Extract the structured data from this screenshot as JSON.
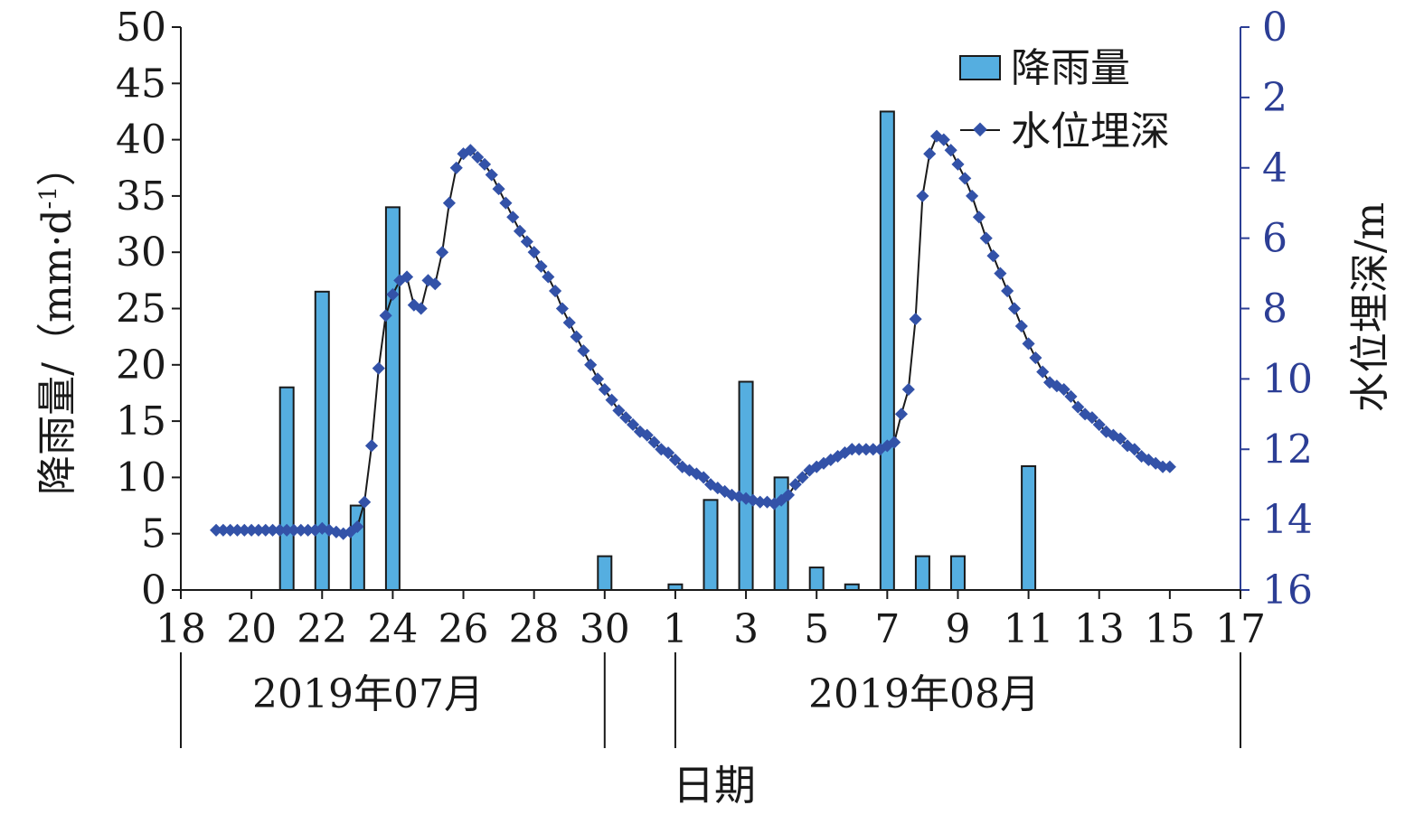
{
  "chart_data": {
    "type": "bar+line",
    "x_ticks": [
      "18",
      "20",
      "22",
      "24",
      "26",
      "28",
      "30",
      "1",
      "3",
      "5",
      "7",
      "9",
      "11",
      "13",
      "15",
      "17"
    ],
    "xlabel": "日期",
    "month_labels": [
      "2019年07月",
      "2019年08月"
    ],
    "ylabel_left": "降雨量/（mm·d",
    "ylabel_left_sup": "-1",
    "ylabel_left_suffix": "）",
    "ylabel_right": "水位埋深/m",
    "ylim_left": [
      0,
      50
    ],
    "ylim_right": [
      0,
      16
    ],
    "y_ticks_left": [
      "0",
      "5",
      "10",
      "15",
      "20",
      "25",
      "30",
      "35",
      "40",
      "45",
      "50"
    ],
    "y_ticks_right": [
      "0",
      "2",
      "4",
      "6",
      "8",
      "10",
      "12",
      "14",
      "16"
    ],
    "right_axis_inverted": true,
    "legend_position": "top-right",
    "colors": {
      "bar": "#55aee0",
      "line": "#1a1a1a",
      "marker": "#3352a8",
      "right_axis": "#2c3e95"
    },
    "series": [
      {
        "name": "降雨量",
        "type": "bar",
        "axis": "left",
        "points": [
          {
            "day": 21,
            "value": 18
          },
          {
            "day": 22,
            "value": 26.5
          },
          {
            "day": 23,
            "value": 7.5
          },
          {
            "day": 24,
            "value": 34
          },
          {
            "day": 30,
            "value": 3
          },
          {
            "day": 32,
            "value": 0.5
          },
          {
            "day": 33,
            "value": 8
          },
          {
            "day": 34,
            "value": 18.5
          },
          {
            "day": 35,
            "value": 10
          },
          {
            "day": 36,
            "value": 2
          },
          {
            "day": 37,
            "value": 0.5
          },
          {
            "day": 38,
            "value": 42.5
          },
          {
            "day": 39,
            "value": 3
          },
          {
            "day": 40,
            "value": 3
          },
          {
            "day": 42,
            "value": 11
          }
        ]
      },
      {
        "name": "水位埋深",
        "type": "line",
        "axis": "right",
        "points": [
          [
            19.0,
            14.3
          ],
          [
            19.2,
            14.3
          ],
          [
            19.4,
            14.3
          ],
          [
            19.6,
            14.3
          ],
          [
            19.8,
            14.3
          ],
          [
            20.0,
            14.3
          ],
          [
            20.2,
            14.3
          ],
          [
            20.4,
            14.3
          ],
          [
            20.6,
            14.3
          ],
          [
            20.8,
            14.3
          ],
          [
            21.0,
            14.3
          ],
          [
            21.2,
            14.3
          ],
          [
            21.4,
            14.3
          ],
          [
            21.6,
            14.3
          ],
          [
            21.8,
            14.3
          ],
          [
            22.0,
            14.25
          ],
          [
            22.2,
            14.3
          ],
          [
            22.4,
            14.35
          ],
          [
            22.6,
            14.4
          ],
          [
            22.8,
            14.35
          ],
          [
            23.0,
            14.2
          ],
          [
            23.2,
            13.5
          ],
          [
            23.4,
            11.9
          ],
          [
            23.6,
            9.7
          ],
          [
            23.8,
            8.2
          ],
          [
            24.0,
            7.6
          ],
          [
            24.2,
            7.2
          ],
          [
            24.4,
            7.1
          ],
          [
            24.6,
            7.9
          ],
          [
            24.8,
            8.0
          ],
          [
            25.0,
            7.2
          ],
          [
            25.2,
            7.3
          ],
          [
            25.4,
            6.4
          ],
          [
            25.6,
            5.0
          ],
          [
            25.8,
            4.0
          ],
          [
            26.0,
            3.6
          ],
          [
            26.2,
            3.5
          ],
          [
            26.4,
            3.7
          ],
          [
            26.6,
            3.9
          ],
          [
            26.8,
            4.2
          ],
          [
            27.0,
            4.6
          ],
          [
            27.2,
            5.0
          ],
          [
            27.4,
            5.4
          ],
          [
            27.6,
            5.8
          ],
          [
            27.8,
            6.1
          ],
          [
            28.0,
            6.4
          ],
          [
            28.2,
            6.8
          ],
          [
            28.4,
            7.1
          ],
          [
            28.6,
            7.5
          ],
          [
            28.8,
            8.0
          ],
          [
            29.0,
            8.4
          ],
          [
            29.2,
            8.8
          ],
          [
            29.4,
            9.2
          ],
          [
            29.6,
            9.6
          ],
          [
            29.8,
            10.0
          ],
          [
            30.0,
            10.3
          ],
          [
            30.2,
            10.6
          ],
          [
            30.4,
            10.9
          ],
          [
            30.6,
            11.1
          ],
          [
            30.8,
            11.3
          ],
          [
            31.0,
            11.5
          ],
          [
            31.2,
            11.6
          ],
          [
            31.4,
            11.8
          ],
          [
            31.6,
            12.0
          ],
          [
            31.8,
            12.1
          ],
          [
            32.0,
            12.3
          ],
          [
            32.2,
            12.5
          ],
          [
            32.4,
            12.6
          ],
          [
            32.6,
            12.7
          ],
          [
            32.8,
            12.8
          ],
          [
            33.0,
            13.0
          ],
          [
            33.2,
            13.1
          ],
          [
            33.4,
            13.2
          ],
          [
            33.6,
            13.3
          ],
          [
            33.8,
            13.35
          ],
          [
            34.0,
            13.4
          ],
          [
            34.2,
            13.45
          ],
          [
            34.4,
            13.5
          ],
          [
            34.6,
            13.5
          ],
          [
            34.8,
            13.55
          ],
          [
            35.0,
            13.45
          ],
          [
            35.2,
            13.3
          ],
          [
            35.4,
            13.0
          ],
          [
            35.6,
            12.8
          ],
          [
            35.8,
            12.6
          ],
          [
            36.0,
            12.5
          ],
          [
            36.2,
            12.4
          ],
          [
            36.4,
            12.3
          ],
          [
            36.6,
            12.2
          ],
          [
            36.8,
            12.1
          ],
          [
            37.0,
            12.0
          ],
          [
            37.2,
            12.0
          ],
          [
            37.4,
            12.0
          ],
          [
            37.6,
            12.0
          ],
          [
            37.8,
            12.0
          ],
          [
            38.0,
            11.9
          ],
          [
            38.2,
            11.8
          ],
          [
            38.4,
            11.0
          ],
          [
            38.6,
            10.3
          ],
          [
            38.8,
            8.3
          ],
          [
            39.0,
            4.8
          ],
          [
            39.2,
            3.6
          ],
          [
            39.4,
            3.1
          ],
          [
            39.6,
            3.2
          ],
          [
            39.8,
            3.5
          ],
          [
            40.0,
            3.9
          ],
          [
            40.2,
            4.3
          ],
          [
            40.4,
            4.8
          ],
          [
            40.6,
            5.4
          ],
          [
            40.8,
            6.0
          ],
          [
            41.0,
            6.5
          ],
          [
            41.2,
            7.0
          ],
          [
            41.4,
            7.5
          ],
          [
            41.6,
            8.0
          ],
          [
            41.8,
            8.5
          ],
          [
            42.0,
            9.0
          ],
          [
            42.2,
            9.4
          ],
          [
            42.4,
            9.8
          ],
          [
            42.6,
            10.1
          ],
          [
            42.8,
            10.2
          ],
          [
            43.0,
            10.3
          ],
          [
            43.2,
            10.5
          ],
          [
            43.4,
            10.8
          ],
          [
            43.6,
            11.0
          ],
          [
            43.8,
            11.1
          ],
          [
            44.0,
            11.3
          ],
          [
            44.2,
            11.5
          ],
          [
            44.4,
            11.6
          ],
          [
            44.6,
            11.7
          ],
          [
            44.8,
            11.9
          ],
          [
            45.0,
            12.0
          ],
          [
            45.2,
            12.2
          ],
          [
            45.4,
            12.3
          ],
          [
            45.6,
            12.4
          ],
          [
            45.8,
            12.5
          ],
          [
            46.0,
            12.5
          ]
        ]
      }
    ]
  }
}
